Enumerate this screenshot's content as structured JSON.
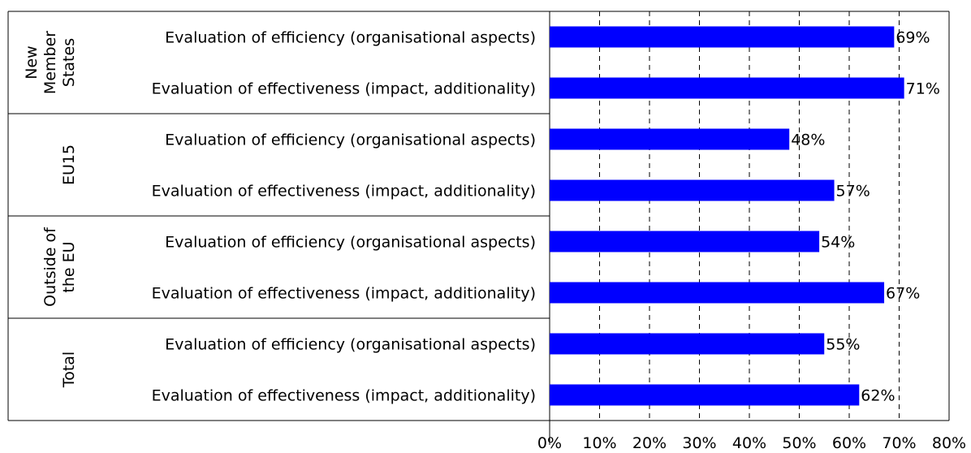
{
  "chart_data": {
    "type": "bar",
    "orientation": "horizontal",
    "categories": [
      "Evaluation of efficiency (organisational aspects)",
      "Evaluation of effectiveness (impact, additionality)",
      "Evaluation of efficiency (organisational aspects)",
      "Evaluation of effectiveness (impact, additionality)",
      "Evaluation of efficiency (organisational aspects)",
      "Evaluation of effectiveness (impact, additionality)",
      "Evaluation of efficiency (organisational aspects)",
      "Evaluation of effectiveness (impact, additionality)"
    ],
    "groups": [
      {
        "label": [
          "New",
          "Member",
          "States"
        ],
        "size": 2
      },
      {
        "label": [
          "EU15"
        ],
        "size": 2
      },
      {
        "label": [
          "Outside of",
          "the EU"
        ],
        "size": 2
      },
      {
        "label": [
          "Total"
        ],
        "size": 2
      }
    ],
    "values": [
      69,
      71,
      48,
      57,
      54,
      67,
      55,
      62
    ],
    "value_labels": [
      "69%",
      "71%",
      "48%",
      "57%",
      "54%",
      "67%",
      "55%",
      "62%"
    ],
    "color": "#0000ff",
    "xlim": [
      0,
      80
    ],
    "xticks": [
      {
        "value": 0,
        "label": "0%"
      },
      {
        "value": 10,
        "label": "10%"
      },
      {
        "value": 20,
        "label": "20%"
      },
      {
        "value": 30,
        "label": "30%"
      },
      {
        "value": 40,
        "label": "40%"
      },
      {
        "value": 50,
        "label": "50%"
      },
      {
        "value": 60,
        "label": "60%"
      },
      {
        "value": 70,
        "label": "70%"
      },
      {
        "value": 80,
        "label": "80%"
      }
    ],
    "grid": true
  }
}
